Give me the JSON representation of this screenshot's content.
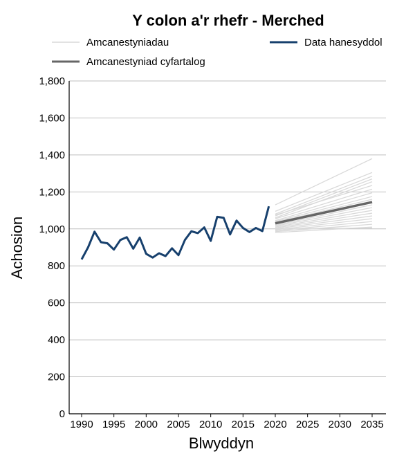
{
  "chart_data": {
    "type": "line",
    "title": "Y colon a'r rhefr - Merched",
    "xlabel": "Blwyddyn",
    "ylabel": "Achosion",
    "xlim": [
      1988,
      2037
    ],
    "ylim": [
      0,
      1800
    ],
    "grid": "horizontal",
    "legend_position": "top",
    "x_ticks": [
      1990,
      1995,
      2000,
      2005,
      2010,
      2015,
      2020,
      2025,
      2030,
      2035
    ],
    "y_ticks": [
      0,
      200,
      400,
      600,
      800,
      1000,
      1200,
      1400,
      1600,
      1800
    ],
    "y_tick_labels": [
      "0",
      "200",
      "400",
      "600",
      "800",
      "1,000",
      "1,200",
      "1,400",
      "1,600",
      "1,800"
    ],
    "legend": {
      "projections": "Amcanestyniadau",
      "historical": "Data hanesyddol",
      "average": "Amcanestyniad cyfartalog"
    },
    "colors": {
      "historical": "#17406d",
      "average": "#666666",
      "projections": "#d9d9d9",
      "grid": "#bfbfbf"
    },
    "historical": {
      "x": [
        1990,
        1991,
        1992,
        1993,
        1994,
        1995,
        1996,
        1997,
        1998,
        1999,
        2000,
        2001,
        2002,
        2003,
        2004,
        2005,
        2006,
        2007,
        2008,
        2009,
        2010,
        2011,
        2012,
        2013,
        2014,
        2015,
        2016,
        2017,
        2018,
        2019
      ],
      "y": [
        835,
        900,
        985,
        928,
        922,
        888,
        940,
        955,
        893,
        953,
        865,
        845,
        868,
        853,
        895,
        858,
        940,
        987,
        977,
        1008,
        935,
        1065,
        1060,
        970,
        1045,
        1005,
        983,
        1005,
        988,
        1122
      ]
    },
    "average": {
      "x": [
        2020,
        2035
      ],
      "y": [
        1030,
        1145
      ]
    },
    "projections": [
      {
        "x": [
          2020,
          2035
        ],
        "y": [
          1130,
          1380
        ]
      },
      {
        "x": [
          2020,
          2035
        ],
        "y": [
          1095,
          1305
        ]
      },
      {
        "x": [
          2020,
          2035
        ],
        "y": [
          1080,
          1285
        ]
      },
      {
        "x": [
          2020,
          2035
        ],
        "y": [
          1070,
          1270
        ]
      },
      {
        "x": [
          2020,
          2035
        ],
        "y": [
          1060,
          1255
        ]
      },
      {
        "x": [
          2020,
          2035
        ],
        "y": [
          1075,
          1235
        ]
      },
      {
        "x": [
          2020,
          2035
        ],
        "y": [
          1055,
          1215
        ]
      },
      {
        "x": [
          2020,
          2035
        ],
        "y": [
          1045,
          1195
        ]
      },
      {
        "x": [
          2020,
          2035
        ],
        "y": [
          1040,
          1175
        ]
      },
      {
        "x": [
          2020,
          2035
        ],
        "y": [
          1035,
          1160
        ]
      },
      {
        "x": [
          2020,
          2035
        ],
        "y": [
          1020,
          1130
        ]
      },
      {
        "x": [
          2020,
          2035
        ],
        "y": [
          1015,
          1115
        ]
      },
      {
        "x": [
          2020,
          2035
        ],
        "y": [
          1010,
          1100
        ]
      },
      {
        "x": [
          2020,
          2035
        ],
        "y": [
          1005,
          1085
        ]
      },
      {
        "x": [
          2020,
          2035
        ],
        "y": [
          1000,
          1070
        ]
      },
      {
        "x": [
          2020,
          2035
        ],
        "y": [
          995,
          1055
        ]
      },
      {
        "x": [
          2020,
          2035
        ],
        "y": [
          990,
          1040
        ]
      },
      {
        "x": [
          2020,
          2035
        ],
        "y": [
          985,
          1025
        ]
      },
      {
        "x": [
          2020,
          2035
        ],
        "y": [
          1000,
          1005
        ]
      },
      {
        "x": [
          2020,
          2035
        ],
        "y": [
          980,
          1010
        ]
      }
    ]
  }
}
